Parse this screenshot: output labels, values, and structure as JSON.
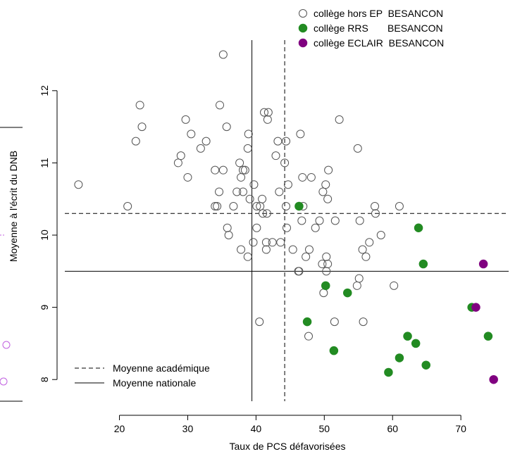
{
  "chart_data": {
    "type": "scatter",
    "xlabel": "Taux de PCS défavorisées",
    "ylabel": "Moyenne à l'écrit du DNB",
    "xlim": [
      12,
      77
    ],
    "ylim": [
      7.7,
      12.7
    ],
    "x_ticks": [
      "20",
      "30",
      "40",
      "50",
      "60",
      "70"
    ],
    "y_ticks": [
      "8",
      "9",
      "10",
      "11",
      "12"
    ],
    "grid": false,
    "legend_position": "top-right",
    "reference_lines": [
      {
        "name": "Moyenne académique",
        "style": "dashed",
        "x": 44.2,
        "y": 10.3
      },
      {
        "name": "Moyenne nationale",
        "style": "solid",
        "x": 39.4,
        "y": 9.5
      }
    ],
    "colors": {
      "hors_ep": "#555555",
      "rrs": "#228b22",
      "eclair": "#800080",
      "edge_marks": "#c060e0"
    },
    "series": [
      {
        "name": "collège hors EP  BESANCON",
        "marker": "open-circle",
        "color": "#555555",
        "points": [
          [
            14,
            10.7
          ],
          [
            21.2,
            10.4
          ],
          [
            22.4,
            11.3
          ],
          [
            23,
            11.8
          ],
          [
            23.3,
            11.5
          ],
          [
            28.6,
            11
          ],
          [
            29,
            11.1
          ],
          [
            29.7,
            11.6
          ],
          [
            30,
            10.8
          ],
          [
            30.5,
            11.4
          ],
          [
            31.9,
            11.2
          ],
          [
            32.7,
            11.3
          ],
          [
            34,
            10.9
          ],
          [
            34,
            10.4
          ],
          [
            34.3,
            10.4
          ],
          [
            34.6,
            10.6
          ],
          [
            34.7,
            11.8
          ],
          [
            35.2,
            10.9
          ],
          [
            35.2,
            12.5
          ],
          [
            35.7,
            11.5
          ],
          [
            35.8,
            10.1
          ],
          [
            36,
            10
          ],
          [
            36.7,
            10.4
          ],
          [
            37.2,
            10.6
          ],
          [
            37.6,
            11
          ],
          [
            37.8,
            9.8
          ],
          [
            37.8,
            10.8
          ],
          [
            38.1,
            10.6
          ],
          [
            38.1,
            10.9
          ],
          [
            38.4,
            10.9
          ],
          [
            38.8,
            9.7
          ],
          [
            38.8,
            11.2
          ],
          [
            38.9,
            11.4
          ],
          [
            39.1,
            10.5
          ],
          [
            39.6,
            9.9
          ],
          [
            39.7,
            10.7
          ],
          [
            40.1,
            10.1
          ],
          [
            40.1,
            10.4
          ],
          [
            40.5,
            8.8
          ],
          [
            40.6,
            10.4
          ],
          [
            40.9,
            10.5
          ],
          [
            41,
            10.3
          ],
          [
            41.2,
            11.7
          ],
          [
            41.5,
            9.9
          ],
          [
            41.5,
            9.8
          ],
          [
            41.6,
            10.3
          ],
          [
            41.7,
            11.6
          ],
          [
            41.8,
            11.7
          ],
          [
            42.4,
            9.9
          ],
          [
            42.9,
            11.1
          ],
          [
            43.2,
            11.3
          ],
          [
            43.4,
            10.6
          ],
          [
            43.6,
            9.9
          ],
          [
            44.2,
            11
          ],
          [
            44.4,
            11.3
          ],
          [
            44.4,
            10.4
          ],
          [
            44.5,
            10.1
          ],
          [
            44.7,
            10.7
          ],
          [
            45.4,
            9.8
          ],
          [
            46.2,
            9.5
          ],
          [
            46.3,
            9.5
          ],
          [
            46.5,
            11.4
          ],
          [
            46.7,
            10.2
          ],
          [
            46.8,
            10.8
          ],
          [
            46.9,
            10.4
          ],
          [
            47.3,
            9.7
          ],
          [
            47.7,
            8.6
          ],
          [
            47.8,
            9.8
          ],
          [
            48.1,
            10.8
          ],
          [
            48.7,
            10.1
          ],
          [
            49.3,
            10.2
          ],
          [
            49.7,
            9.6
          ],
          [
            49.8,
            10.6
          ],
          [
            49.9,
            9.2
          ],
          [
            50.2,
            10.7
          ],
          [
            50.3,
            9.5
          ],
          [
            50.3,
            9.7
          ],
          [
            50.5,
            10.5
          ],
          [
            50.5,
            9.6
          ],
          [
            50.6,
            10.9
          ],
          [
            51.5,
            8.8
          ],
          [
            51.6,
            10.2
          ],
          [
            52.2,
            11.6
          ],
          [
            54.8,
            9.3
          ],
          [
            54.9,
            11.2
          ],
          [
            55.1,
            9.4
          ],
          [
            55.2,
            10.2
          ],
          [
            55.6,
            9.8
          ],
          [
            55.7,
            8.8
          ],
          [
            56.1,
            9.7
          ],
          [
            56.6,
            9.9
          ],
          [
            57.4,
            10.4
          ],
          [
            57.5,
            10.3
          ],
          [
            58.3,
            10
          ],
          [
            60.2,
            9.3
          ],
          [
            61,
            10.4
          ]
        ]
      },
      {
        "name": "collège RRS       BESANCON",
        "marker": "filled-circle",
        "color": "#228b22",
        "points": [
          [
            46.3,
            10.4
          ],
          [
            50.2,
            9.3
          ],
          [
            47.5,
            8.8
          ],
          [
            51.4,
            8.4
          ],
          [
            53.4,
            9.2
          ],
          [
            59.4,
            8.1
          ],
          [
            61,
            8.3
          ],
          [
            62.2,
            8.6
          ],
          [
            63.4,
            8.5
          ],
          [
            63.8,
            10.1
          ],
          [
            64.5,
            9.6
          ],
          [
            64.9,
            8.2
          ],
          [
            71.6,
            9
          ],
          [
            74,
            8.6
          ]
        ]
      },
      {
        "name": "collège ECLAIR  BESANCON",
        "marker": "filled-circle",
        "color": "#800080",
        "points": [
          [
            72.2,
            9
          ],
          [
            73.3,
            9.6
          ],
          [
            74.8,
            8
          ]
        ]
      }
    ]
  }
}
